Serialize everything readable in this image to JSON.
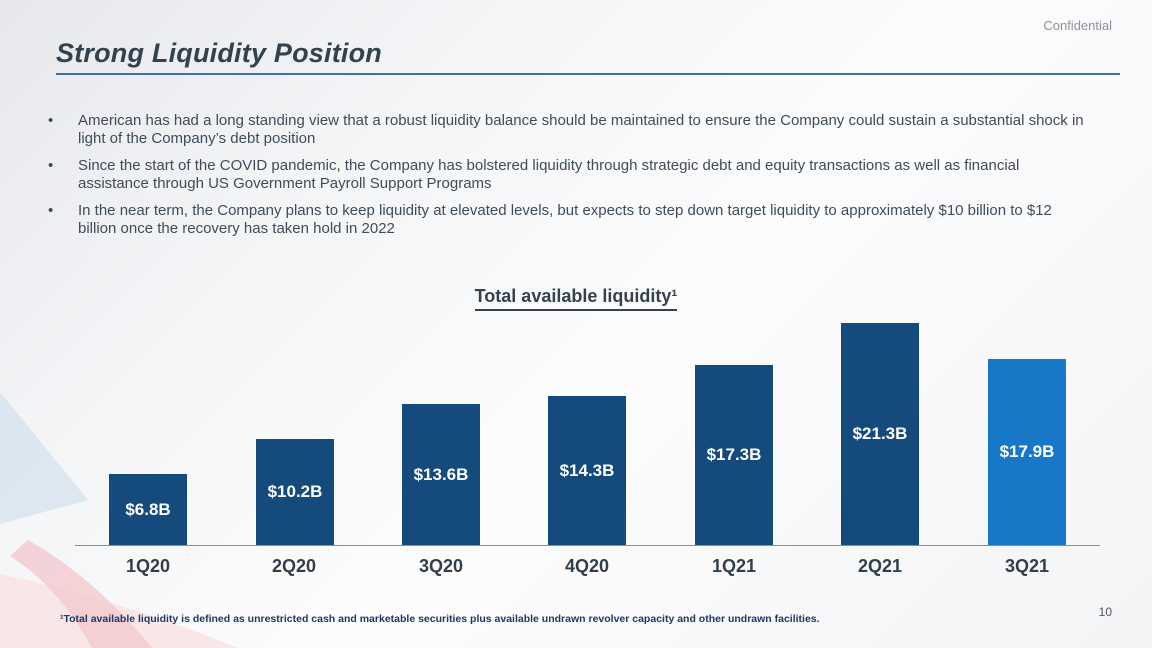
{
  "header": {
    "confidential": "Confidential",
    "title": "Strong Liquidity Position"
  },
  "bullets": [
    "American has had a long standing view that a robust liquidity balance should be maintained to ensure the Company could sustain a substantial shock in light of the Company’s debt position",
    "Since the start of the COVID pandemic, the Company has bolstered liquidity through strategic debt and equity transactions as well as financial assistance through US Government Payroll Support Programs",
    "In the near term, the Company plans to keep liquidity at elevated levels, but expects to step down target liquidity to approximately $10 billion to $12 billion once the recovery has taken hold in 2022"
  ],
  "bullet_marker": "•",
  "chart_data": {
    "type": "bar",
    "title": "Total available liquidity¹",
    "categories": [
      "1Q20",
      "2Q20",
      "3Q20",
      "4Q20",
      "1Q21",
      "2Q21",
      "3Q21"
    ],
    "values": [
      6.8,
      10.2,
      13.6,
      14.3,
      17.3,
      21.3,
      17.9
    ],
    "labels": [
      "$6.8B",
      "$10.2B",
      "$13.6B",
      "$14.3B",
      "$17.3B",
      "$21.3B",
      "$17.9B"
    ],
    "bar_colors": [
      "#144a7c",
      "#144a7c",
      "#144a7c",
      "#144a7c",
      "#144a7c",
      "#144a7c",
      "#1778c8"
    ],
    "xlabel": "",
    "ylabel": "",
    "ylim": [
      0,
      22
    ],
    "grid": false,
    "legend": false,
    "value_label_position": "inside-center",
    "unit": "$B"
  },
  "footnote": "¹Total available liquidity is defined as unrestricted cash and marketable securities plus available undrawn revolver capacity and other undrawn facilities.",
  "page_number": "10",
  "colors": {
    "bar_primary": "#144a7c",
    "bar_highlight": "#1778c8",
    "title_text": "#33424e",
    "title_underline": "#41719c",
    "footnote_text": "#1f3864",
    "decoration_blue": "#d4e2ef",
    "decoration_pink": "#f3c9ce"
  }
}
